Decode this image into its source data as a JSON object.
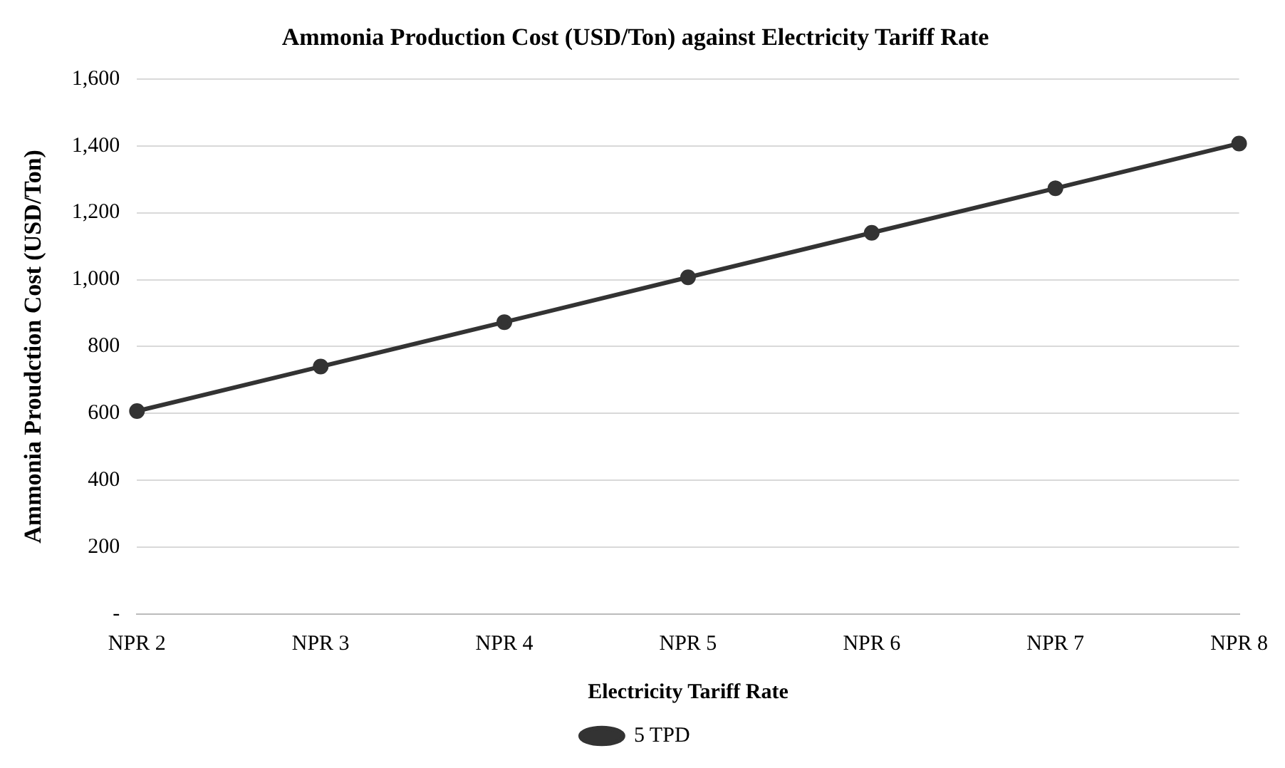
{
  "chart_data": {
    "type": "line",
    "title": "Ammonia Production Cost (USD/Ton) against Electricity Tariff Rate",
    "xlabel": "Electricity Tariff Rate",
    "ylabel": "Ammonia Proudction Cost (USD/Ton)",
    "categories": [
      "NPR 2",
      "NPR 3",
      "NPR 4",
      "NPR 5",
      "NPR 6",
      "NPR 7",
      "NPR 8"
    ],
    "series": [
      {
        "name": "5 TPD",
        "color": "#333333",
        "values": [
          607,
          740,
          873,
          1007,
          1140,
          1273,
          1407
        ]
      }
    ],
    "ylim": [
      0,
      1600
    ],
    "yticks": [
      {
        "value": 0,
        "label": "-"
      },
      200,
      400,
      600,
      800,
      {
        "value": 1000,
        "label": "1,000"
      },
      {
        "value": 1200,
        "label": "1,200"
      },
      {
        "value": 1400,
        "label": "1,400"
      },
      {
        "value": 1600,
        "label": "1,600"
      }
    ],
    "grid": "y",
    "legend": "bottom",
    "marker": "circle",
    "line_style": "solid"
  }
}
